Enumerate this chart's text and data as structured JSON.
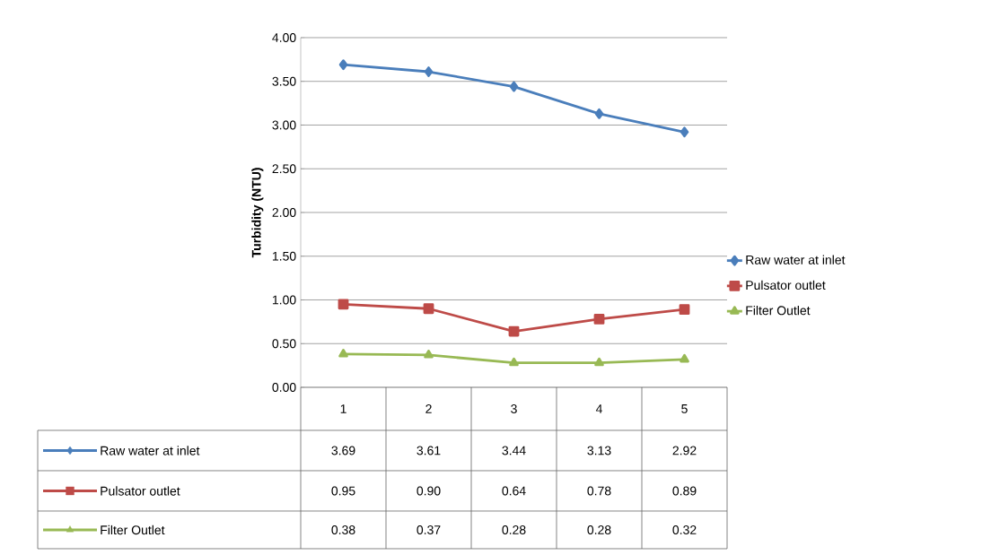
{
  "chart_data": {
    "type": "line",
    "ylabel": "Turbidity (NTU)",
    "categories": [
      "1",
      "2",
      "3",
      "4",
      "5"
    ],
    "series": [
      {
        "name": "Raw water at inlet",
        "color": "#4a7ebb",
        "marker": "diamond",
        "values": [
          3.69,
          3.61,
          3.44,
          3.13,
          2.92
        ],
        "value_labels": [
          "3.69",
          "3.61",
          "3.44",
          "3.13",
          "2.92"
        ]
      },
      {
        "name": "Pulsator outlet",
        "color": "#be4b48",
        "marker": "square",
        "values": [
          0.95,
          0.9,
          0.64,
          0.78,
          0.89
        ],
        "value_labels": [
          "0.95",
          "0.90",
          "0.64",
          "0.78",
          "0.89"
        ]
      },
      {
        "name": "Filter Outlet",
        "color": "#98b954",
        "marker": "triangle",
        "values": [
          0.38,
          0.37,
          0.28,
          0.28,
          0.32
        ],
        "value_labels": [
          "0.38",
          "0.37",
          "0.28",
          "0.28",
          "0.32"
        ]
      }
    ],
    "ylim": [
      0,
      4
    ],
    "yticks": [
      {
        "value": 0,
        "label": "0.00"
      },
      {
        "value": 0.5,
        "label": "0.50"
      },
      {
        "value": 1,
        "label": "1.00"
      },
      {
        "value": 1.5,
        "label": "1.50"
      },
      {
        "value": 2,
        "label": "2.00"
      },
      {
        "value": 2.5,
        "label": "2.50"
      },
      {
        "value": 3,
        "label": "3.00"
      },
      {
        "value": 3.5,
        "label": "3.50"
      },
      {
        "value": 4,
        "label": "4.00"
      }
    ],
    "grid": "y",
    "legend": "right",
    "line_style": "solid"
  }
}
